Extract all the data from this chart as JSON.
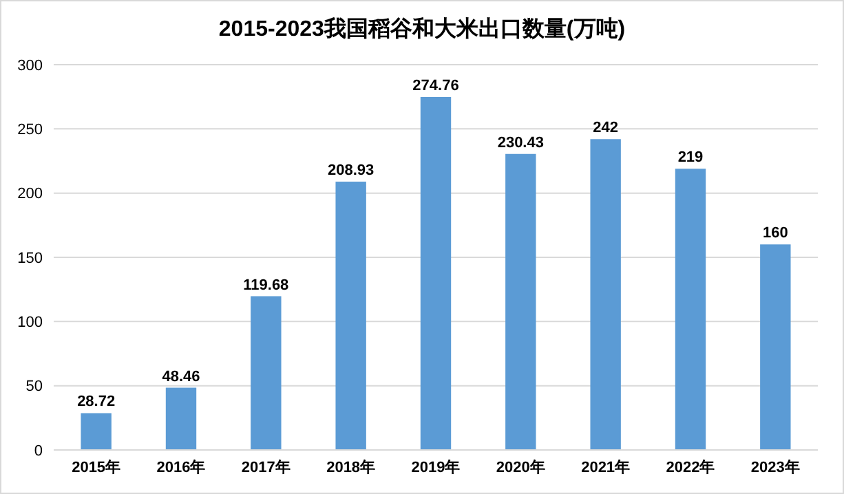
{
  "chart_data": {
    "type": "bar",
    "title": "2015-2023我国稻谷和大米出口数量(万吨)",
    "categories": [
      "2015年",
      "2016年",
      "2017年",
      "2018年",
      "2019年",
      "2020年",
      "2021年",
      "2022年",
      "2023年"
    ],
    "values": [
      28.72,
      48.46,
      119.68,
      208.93,
      274.76,
      230.43,
      242,
      219,
      160
    ],
    "color": "#5b9bd5",
    "ylim": [
      0,
      300
    ],
    "yticks": [
      0,
      50,
      100,
      150,
      200,
      250,
      300
    ],
    "grid": "y",
    "data_labels": true,
    "legend": false
  }
}
